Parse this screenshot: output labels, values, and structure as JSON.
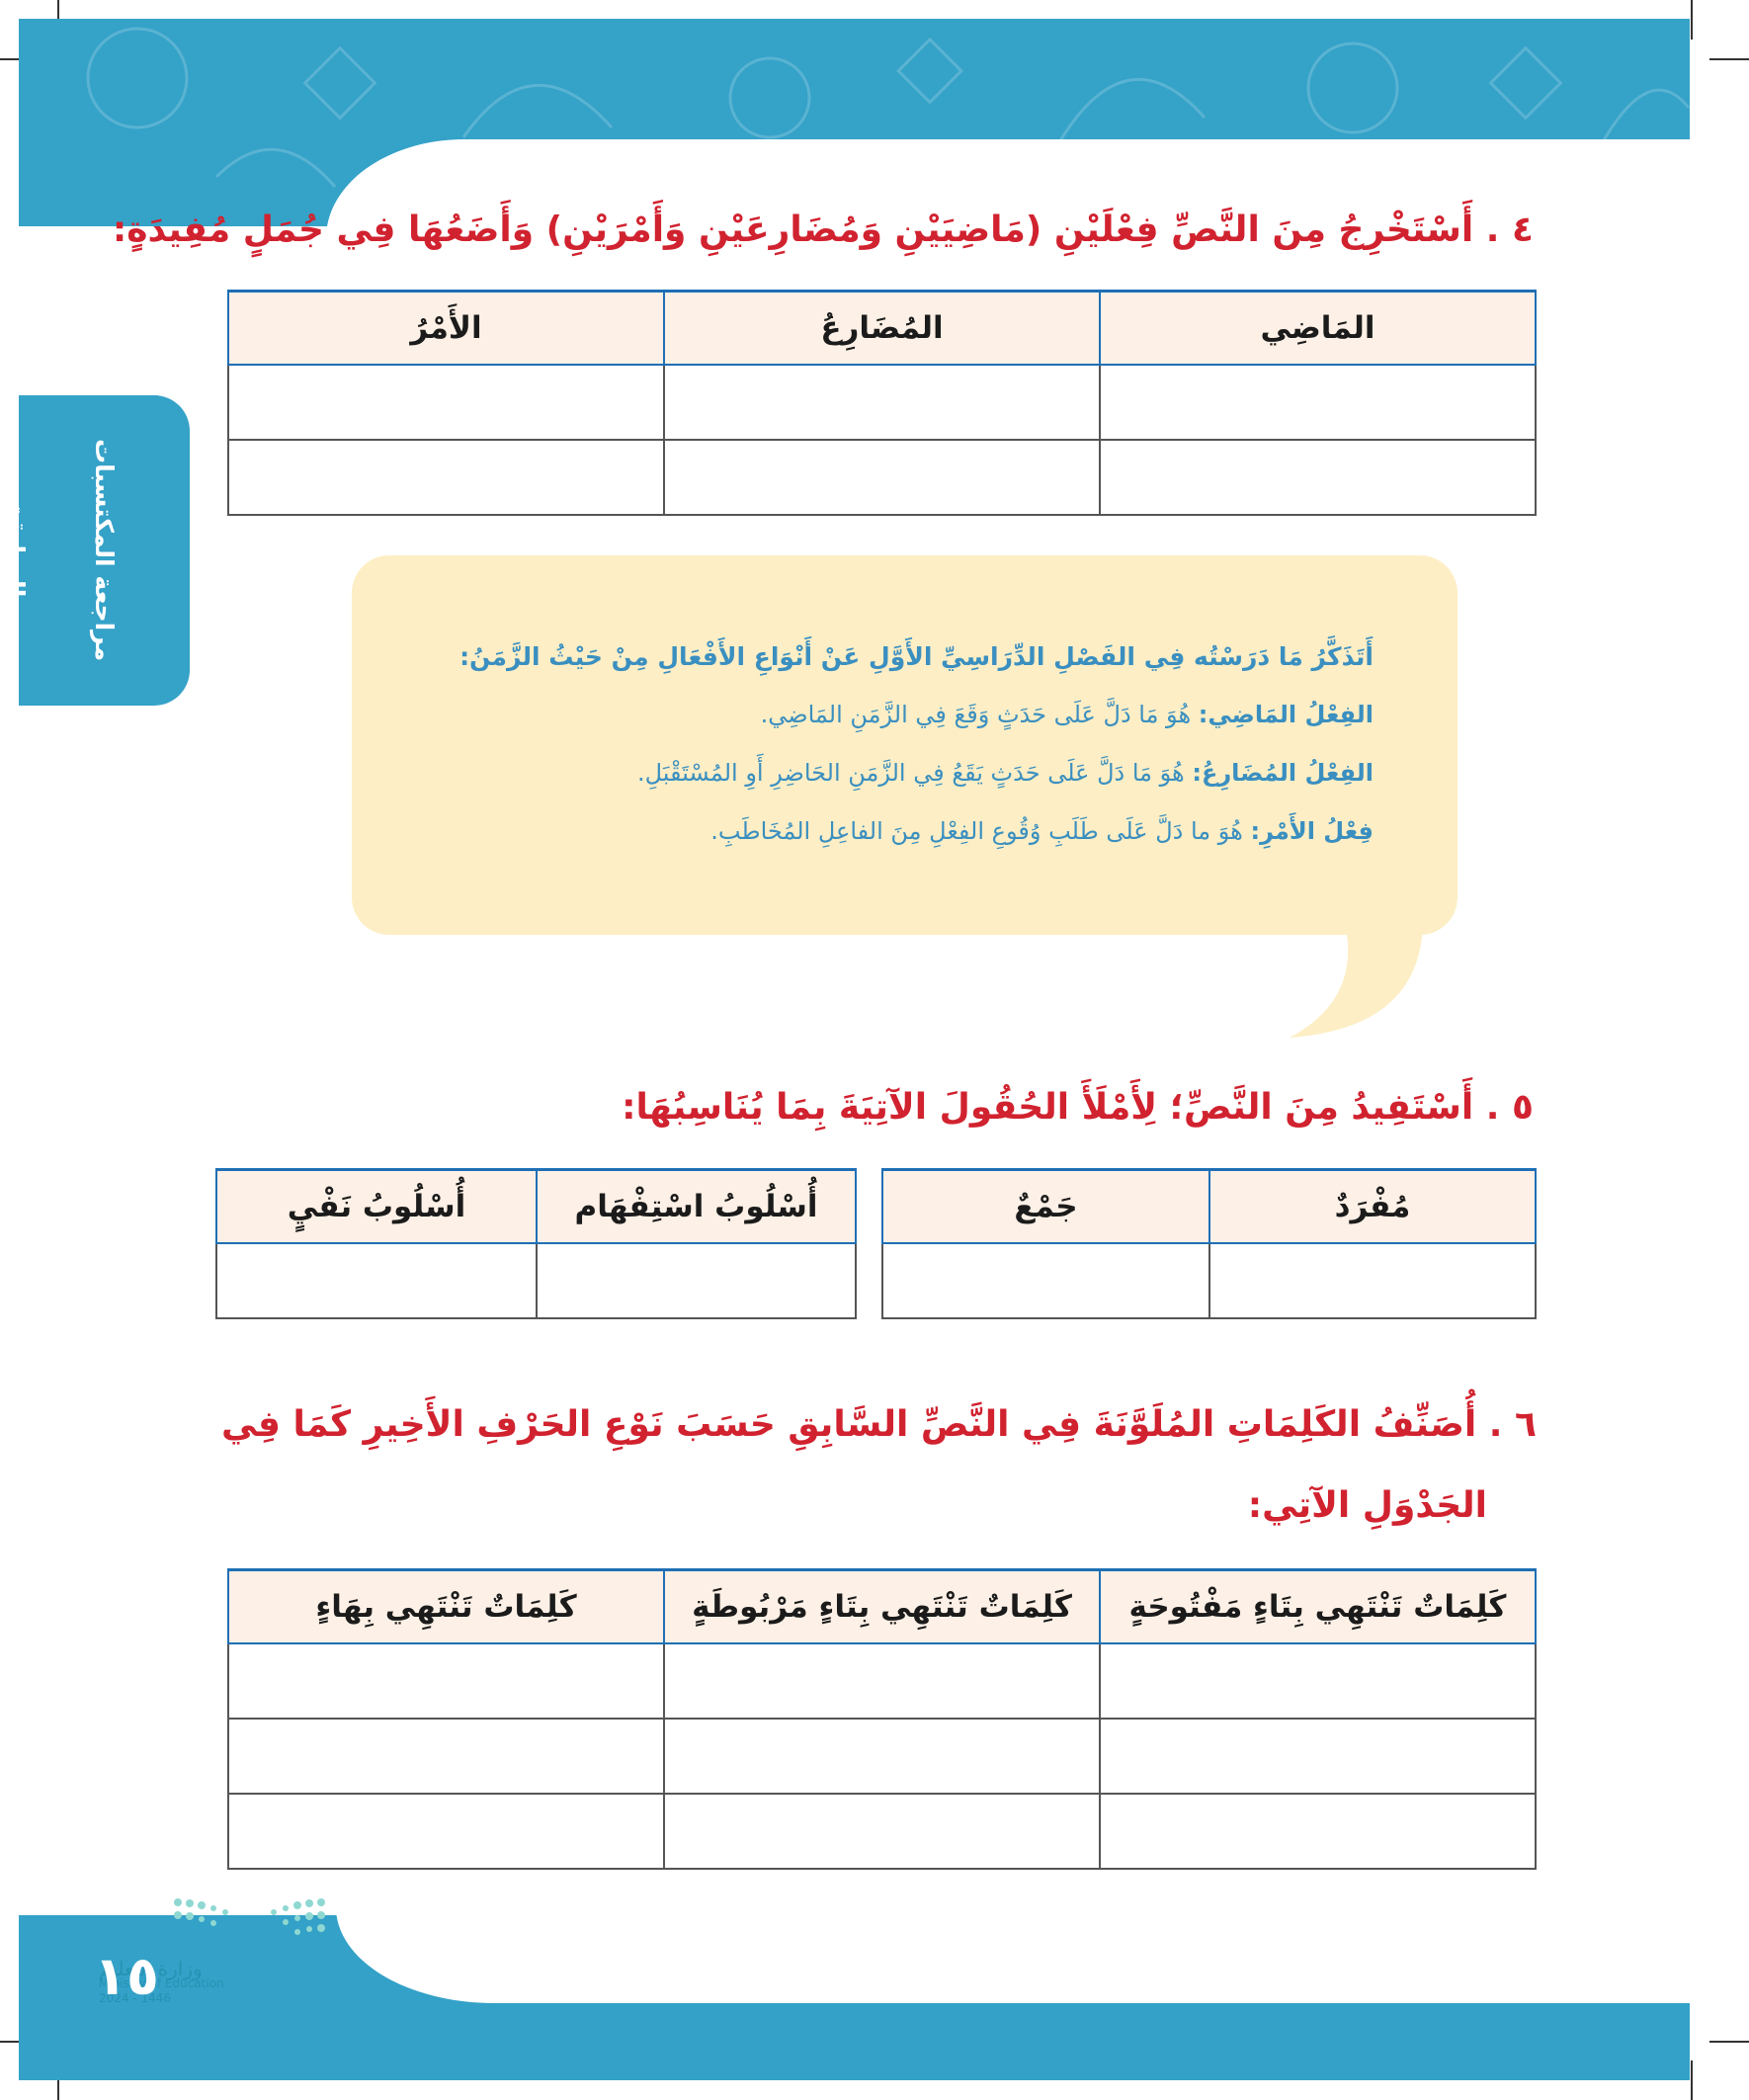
{
  "side_tab": {
    "label": "مراجعة المكتسبات السابقة"
  },
  "q4": {
    "heading": "٤ . أَسْتَخْرِجُ مِنَ النَّصِّ فِعْلَيْنِ (مَاضِيَيْنِ وَمُضَارِعَيْنِ وَأَمْرَيْنِ) وَأَضَعُهَا فِي جُمَلٍ مُفِيدَةٍ:",
    "columns": [
      "المَاضِي",
      "المُضَارِعُ",
      "الأَمْرُ"
    ],
    "rows": 2
  },
  "callout": {
    "title": "أَتَذَكَّرُ مَا دَرَسْتُه فِي الفَصْلِ الدِّرَاسِيِّ الأَوَّلِ عَنْ أَنْوَاعِ الأَفْعَالِ مِنْ حَيْثُ الزَّمَنُ:",
    "items": [
      {
        "term": "الفِعْلُ المَاضِي:",
        "definition": "هُوَ مَا دَلَّ عَلَى حَدَثٍ وَقَعَ فِي الزَّمَنِ المَاضِي."
      },
      {
        "term": "الفِعْلُ المُضَارِعُ:",
        "definition": "هُوَ مَا دَلَّ عَلَى حَدَثٍ يَقَعُ فِي الزَّمَنِ الحَاضِرِ أَوِ المُسْتَقْبَلِ."
      },
      {
        "term": "فِعْلُ الأَمْرِ:",
        "definition": "هُوَ ما دَلَّ عَلَى طَلَبِ وُقُوعِ الفِعْلِ مِنَ الفاعِلِ المُخَاطَبِ."
      }
    ]
  },
  "q5": {
    "heading": "٥ . أَسْتَفِيدُ مِنَ النَّصِّ؛ لِأَمْلَأَ الحُقُولَ الآتِيَةَ بِمَا يُنَاسِبُهَا:",
    "table_right": [
      "مُفْرَدٌ",
      "جَمْعٌ"
    ],
    "table_left": [
      "أُسْلُوبُ اسْتِفْهَام",
      "أُسْلُوبُ نَفْيٍ"
    ]
  },
  "q6": {
    "heading_line1": "٦ . أُصَنِّفُ الكَلِمَاتِ المُلَوَّنَةَ فِي النَّصِّ السَّابِقِ حَسَبَ نَوْعِ الحَرْفِ الأَخِيرِ كَمَا فِي",
    "heading_line2": "الجَدْوَلِ الآتِي:",
    "columns": [
      "كَلِمَاتٌ تَنْتَهِي بِتَاءٍ مَفْتُوحَةٍ",
      "كَلِمَاتٌ تَنْتَهِي بِتَاءٍ مَرْبُوطَةٍ",
      "كَلِمَاتٌ تَنْتَهِي بِهَاءٍ"
    ],
    "rows": 3
  },
  "footer": {
    "page_number": "١٥",
    "watermark_ar": "وزارة التعليم",
    "watermark_en": "Ministry of Education",
    "watermark_year": "2024 - 1446"
  },
  "colors": {
    "accent_blue": "#35a2c8",
    "heading_red": "#d1222f",
    "callout_bg": "#fdeec5",
    "table_header_bg": "#fdf0e6",
    "table_border": "#1f6fb5"
  }
}
